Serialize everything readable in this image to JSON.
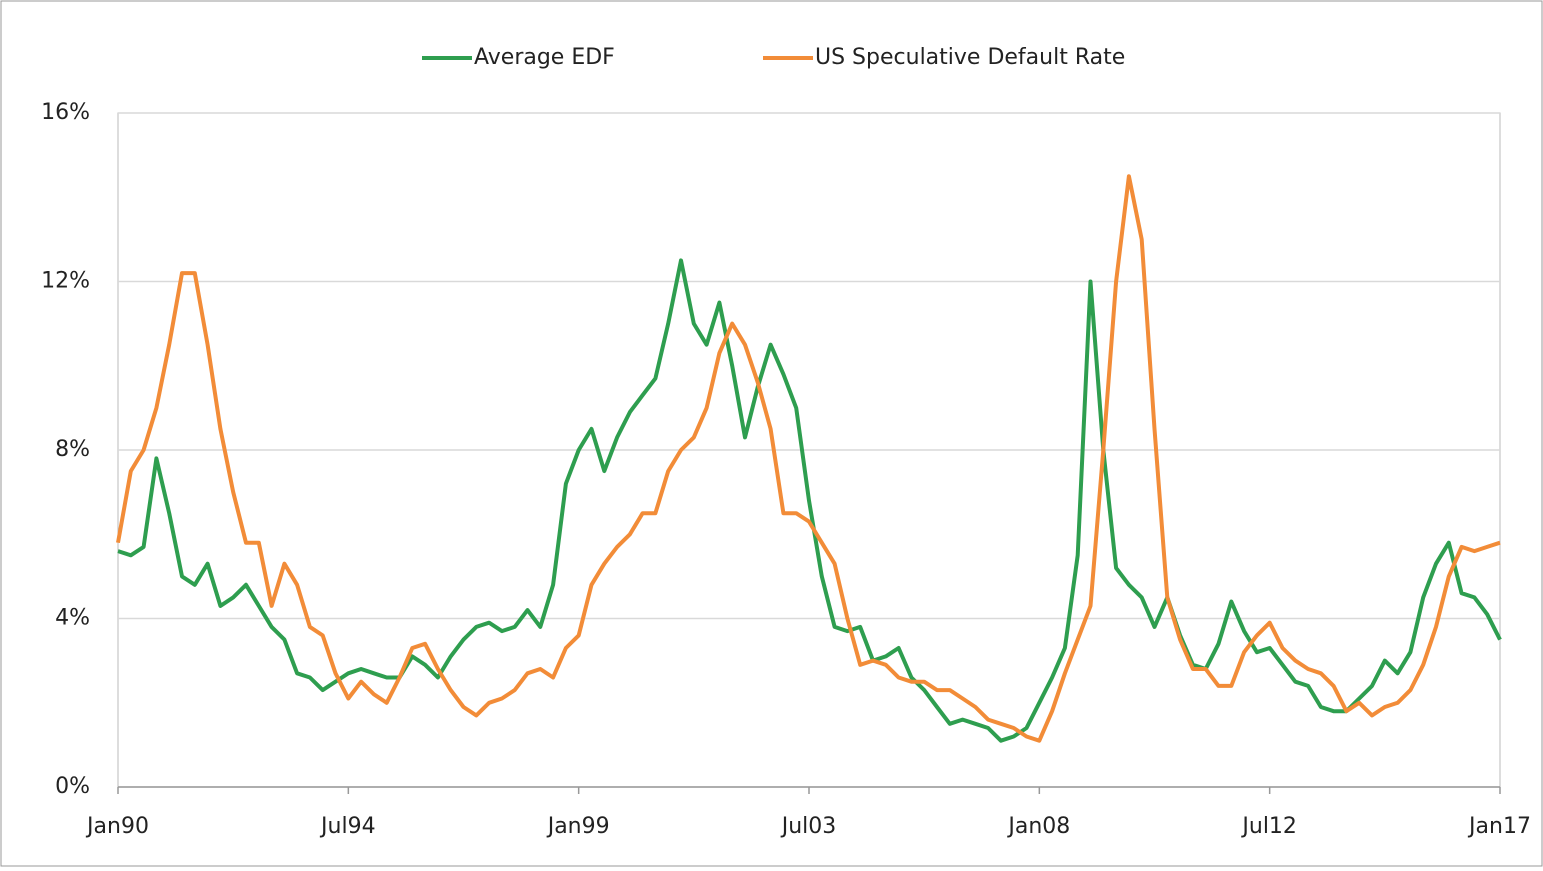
{
  "chart_data": {
    "type": "line",
    "x": [
      "Jan90",
      "Apr90",
      "Jul90",
      "Oct90",
      "Jan91",
      "Apr91",
      "Jul91",
      "Oct91",
      "Jan92",
      "Apr92",
      "Jul92",
      "Oct92",
      "Jan93",
      "Apr93",
      "Jul93",
      "Oct93",
      "Jan94",
      "Apr94",
      "Jul94",
      "Oct94",
      "Jan95",
      "Apr95",
      "Jul95",
      "Oct95",
      "Jan96",
      "Apr96",
      "Jul96",
      "Oct96",
      "Jan97",
      "Apr97",
      "Jul97",
      "Oct97",
      "Jan98",
      "Apr98",
      "Jul98",
      "Oct98",
      "Jan99",
      "Apr99",
      "Jul99",
      "Oct99",
      "Jan00",
      "Apr00",
      "Jul00",
      "Oct00",
      "Jan01",
      "Apr01",
      "Jul01",
      "Oct01",
      "Jan02",
      "Apr02",
      "Jul02",
      "Oct02",
      "Jan03",
      "Apr03",
      "Jul03",
      "Oct03",
      "Jan04",
      "Apr04",
      "Jul04",
      "Oct04",
      "Jan05",
      "Apr05",
      "Jul05",
      "Oct05",
      "Jan06",
      "Apr06",
      "Jul06",
      "Oct06",
      "Jan07",
      "Apr07",
      "Jul07",
      "Oct07",
      "Jan08",
      "Apr08",
      "Jul08",
      "Oct08",
      "Jan09",
      "Apr09",
      "Jul09",
      "Oct09",
      "Jan10",
      "Apr10",
      "Jul10",
      "Oct10",
      "Jan11",
      "Apr11",
      "Jul11",
      "Oct11",
      "Jan12",
      "Apr12",
      "Jul12",
      "Oct12",
      "Jan13",
      "Apr13",
      "Jul13",
      "Oct13",
      "Jan14",
      "Apr14",
      "Jul14",
      "Oct14",
      "Jan15",
      "Apr15",
      "Jul15",
      "Oct15",
      "Jan16",
      "Apr16",
      "Jul16",
      "Oct16",
      "Jan17"
    ],
    "xticks": [
      "Jan90",
      "Jul94",
      "Jan99",
      "Jul03",
      "Jan08",
      "Jul12",
      "Jan17"
    ],
    "series": [
      {
        "name": "Average EDF",
        "color": "#2e9e4f",
        "values": [
          5.6,
          5.5,
          5.7,
          7.8,
          6.5,
          5.0,
          4.8,
          5.3,
          4.3,
          4.5,
          4.8,
          4.3,
          3.8,
          3.5,
          2.7,
          2.6,
          2.3,
          2.5,
          2.7,
          2.8,
          2.7,
          2.6,
          2.6,
          3.1,
          2.9,
          2.6,
          3.1,
          3.5,
          3.8,
          3.9,
          3.7,
          3.8,
          4.2,
          3.8,
          4.8,
          7.2,
          8.0,
          8.5,
          7.5,
          8.3,
          8.9,
          9.3,
          9.7,
          11.0,
          12.5,
          11.0,
          10.5,
          11.5,
          10.0,
          8.3,
          9.5,
          10.5,
          9.8,
          9.0,
          6.8,
          5.0,
          3.8,
          3.7,
          3.8,
          3.0,
          3.1,
          3.3,
          2.6,
          2.3,
          1.9,
          1.5,
          1.6,
          1.5,
          1.4,
          1.1,
          1.2,
          1.4,
          2.0,
          2.6,
          3.3,
          5.5,
          12.0,
          8.0,
          5.2,
          4.8,
          4.5,
          3.8,
          4.5,
          3.6,
          2.9,
          2.8,
          3.4,
          4.4,
          3.7,
          3.2,
          3.3,
          2.9,
          2.5,
          2.4,
          1.9,
          1.8,
          1.8,
          2.1,
          2.4,
          3.0,
          2.7,
          3.2,
          4.5,
          5.3,
          5.8,
          4.6,
          4.5,
          4.1,
          3.5
        ]
      },
      {
        "name": "US Speculative Default Rate",
        "color": "#f28c38",
        "values": [
          5.8,
          7.5,
          8.0,
          9.0,
          10.5,
          12.2,
          12.2,
          10.5,
          8.5,
          7.0,
          5.8,
          5.8,
          4.3,
          5.3,
          4.8,
          3.8,
          3.6,
          2.7,
          2.1,
          2.5,
          2.2,
          2.0,
          2.6,
          3.3,
          3.4,
          2.8,
          2.3,
          1.9,
          1.7,
          2.0,
          2.1,
          2.3,
          2.7,
          2.8,
          2.6,
          3.3,
          3.6,
          4.8,
          5.3,
          5.7,
          6.0,
          6.5,
          6.5,
          7.5,
          8.0,
          8.3,
          9.0,
          10.3,
          11.0,
          10.5,
          9.6,
          8.5,
          6.5,
          6.5,
          6.3,
          5.8,
          5.3,
          4.0,
          2.9,
          3.0,
          2.9,
          2.6,
          2.5,
          2.5,
          2.3,
          2.3,
          2.1,
          1.9,
          1.6,
          1.5,
          1.4,
          1.2,
          1.1,
          1.8,
          2.7,
          3.5,
          4.3,
          8.0,
          12.0,
          14.5,
          13.0,
          8.5,
          4.5,
          3.5,
          2.8,
          2.8,
          2.4,
          2.4,
          3.2,
          3.6,
          3.9,
          3.3,
          3.0,
          2.8,
          2.7,
          2.4,
          1.8,
          2.0,
          1.7,
          1.9,
          2.0,
          2.3,
          2.9,
          3.8,
          5.0,
          5.7,
          5.6,
          5.7,
          5.8
        ]
      }
    ],
    "ylim": [
      0,
      16
    ],
    "yticks": [
      {
        "value": 0,
        "label": "0%"
      },
      {
        "value": 4,
        "label": "4%"
      },
      {
        "value": 8,
        "label": "8%"
      },
      {
        "value": 12,
        "label": "12%"
      },
      {
        "value": 16,
        "label": "16%"
      }
    ],
    "grid": true,
    "legend": "top"
  }
}
